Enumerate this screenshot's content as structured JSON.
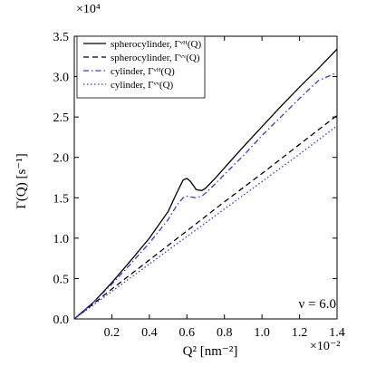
{
  "chart_data": {
    "type": "line",
    "xlabel": "Q² [nm⁻²]",
    "ylabel": "Γ(Q) [s⁻¹]",
    "x_multiplier": "×10⁻²",
    "y_multiplier": "×10⁴",
    "xlim": [
      0,
      1.4
    ],
    "ylim": [
      0,
      3.5
    ],
    "x_ticks": [
      "0.2",
      "0.4",
      "0.6",
      "0.8",
      "1.0",
      "1.2",
      "1.4"
    ],
    "y_ticks": [
      "0.0",
      "0.5",
      "1.0",
      "1.5",
      "2.0",
      "2.5",
      "3.0",
      "3.5"
    ],
    "legend_position": "top-left",
    "annotation": "ν = 6.0",
    "annotation_position": "bottom-right",
    "series": [
      {
        "name": "spherocylinder, Γᵛᴴ(Q)",
        "color": "#000000",
        "style": "solid",
        "x": [
          0,
          0.1,
          0.2,
          0.3,
          0.4,
          0.5,
          0.55,
          0.58,
          0.6,
          0.62,
          0.65,
          0.68,
          0.7,
          0.75,
          0.8,
          0.9,
          1.0,
          1.1,
          1.2,
          1.3,
          1.4
        ],
        "y": [
          0,
          0.2,
          0.45,
          0.72,
          1.0,
          1.33,
          1.58,
          1.72,
          1.74,
          1.7,
          1.6,
          1.59,
          1.62,
          1.74,
          1.87,
          2.13,
          2.38,
          2.63,
          2.87,
          3.1,
          3.34
        ]
      },
      {
        "name": "spherocylinder, Γᵛᵛ(Q)",
        "color": "#000000",
        "style": "dashed",
        "x": [
          0,
          0.2,
          0.4,
          0.6,
          0.8,
          1.0,
          1.2,
          1.4
        ],
        "y": [
          0,
          0.37,
          0.73,
          1.09,
          1.45,
          1.8,
          2.16,
          2.52
        ]
      },
      {
        "name": "cylinder, Γᵛᴴ(Q)",
        "color": "#3a3acc",
        "style": "dashdot",
        "x": [
          0,
          0.1,
          0.2,
          0.3,
          0.4,
          0.5,
          0.55,
          0.58,
          0.6,
          0.62,
          0.65,
          0.68,
          0.7,
          0.75,
          0.8,
          0.9,
          1.0,
          1.1,
          1.2,
          1.3,
          1.4
        ],
        "y": [
          0,
          0.2,
          0.43,
          0.68,
          0.94,
          1.23,
          1.42,
          1.5,
          1.52,
          1.51,
          1.5,
          1.52,
          1.56,
          1.67,
          1.79,
          2.02,
          2.27,
          2.5,
          2.73,
          2.95,
          3.05
        ]
      },
      {
        "name": "cylinder, Γᵛᵛ(Q)",
        "color": "#3a3acc",
        "style": "dotted",
        "x": [
          0,
          0.2,
          0.4,
          0.6,
          0.8,
          1.0,
          1.2,
          1.4
        ],
        "y": [
          0,
          0.34,
          0.68,
          1.02,
          1.36,
          1.7,
          2.04,
          2.39
        ]
      }
    ]
  }
}
